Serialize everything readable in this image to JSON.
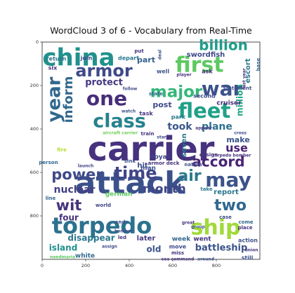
{
  "chart_data": {
    "type": "wordcloud",
    "title": "WordCloud 3 of 6 - Vocabulary from Real-Time",
    "xlabel": "",
    "ylabel": "",
    "xlim": [
      0,
      1000
    ],
    "ylim": [
      1000,
      0
    ],
    "x_ticks": [
      "0",
      "200",
      "400",
      "600",
      "800"
    ],
    "y_ticks": [
      "0",
      "200",
      "400",
      "600",
      "800"
    ],
    "words": [
      {
        "text": "carrier",
        "weight": 1.0,
        "color": "#46327e"
      },
      {
        "text": "attack",
        "weight": 0.95,
        "color": "#3b518b"
      },
      {
        "text": "ship",
        "weight": 0.6,
        "color": "#a0da39"
      },
      {
        "text": "torpedo",
        "weight": 0.55,
        "color": "#2c728e"
      },
      {
        "text": "china",
        "weight": 0.6,
        "color": "#21918c"
      },
      {
        "text": "first",
        "weight": 0.55,
        "color": "#5ec962"
      },
      {
        "text": "war",
        "weight": 0.5,
        "color": "#3b528b"
      },
      {
        "text": "fleet",
        "weight": 0.5,
        "color": "#1fa187"
      },
      {
        "text": "one",
        "weight": 0.5,
        "color": "#472d7b"
      },
      {
        "text": "armor",
        "weight": 0.45,
        "color": "#3e4a89"
      },
      {
        "text": "year",
        "weight": 0.45,
        "color": "#31688e"
      },
      {
        "text": "class",
        "weight": 0.45,
        "color": "#26828e"
      },
      {
        "text": "time",
        "weight": 0.45,
        "color": "#414487"
      },
      {
        "text": "may",
        "weight": 0.45,
        "color": "#3b528b"
      },
      {
        "text": "billion",
        "weight": 0.4,
        "color": "#1f9e89"
      },
      {
        "text": "major",
        "weight": 0.4,
        "color": "#35b779"
      },
      {
        "text": "power",
        "weight": 0.35,
        "color": "#3e4a89"
      },
      {
        "text": "air",
        "weight": 0.35,
        "color": "#2a788e"
      },
      {
        "text": "accord",
        "weight": 0.35,
        "color": "#482475"
      },
      {
        "text": "two",
        "weight": 0.35,
        "color": "#31688e"
      },
      {
        "text": "wit",
        "weight": 0.35,
        "color": "#46337e"
      },
      {
        "text": "month",
        "weight": 0.3,
        "color": "#3f4788"
      },
      {
        "text": "inform",
        "weight": 0.3,
        "color": "#31688e"
      },
      {
        "text": "use",
        "weight": 0.25,
        "color": "#482173"
      },
      {
        "text": "took",
        "weight": 0.25,
        "color": "#39568c"
      },
      {
        "text": "plane",
        "weight": 0.22,
        "color": "#2d708e"
      },
      {
        "text": "battleship",
        "weight": 0.22,
        "color": "#3b528b"
      },
      {
        "text": "nuclear",
        "weight": 0.22,
        "color": "#433e85"
      },
      {
        "text": "island",
        "weight": 0.2,
        "color": "#21908d"
      },
      {
        "text": "old",
        "weight": 0.2,
        "color": "#3b528b"
      },
      {
        "text": "protect",
        "weight": 0.2,
        "color": "#453781"
      },
      {
        "text": "disappear",
        "weight": 0.2,
        "color": "#2a788e"
      },
      {
        "text": "four",
        "weight": 0.2,
        "color": "#46327e"
      },
      {
        "text": "swordfish",
        "weight": 0.16,
        "color": "#3f4788"
      },
      {
        "text": "million",
        "weight": 0.16,
        "color": "#22a884"
      },
      {
        "text": "escort",
        "weight": 0.14,
        "color": "#2a788e"
      },
      {
        "text": "post",
        "weight": 0.16,
        "color": "#3e4a89"
      },
      {
        "text": "part",
        "weight": 0.16,
        "color": "#35608d"
      },
      {
        "text": "make",
        "weight": 0.16,
        "color": "#3b528b"
      },
      {
        "text": "seven",
        "weight": 0.14,
        "color": "#2c728e"
      },
      {
        "text": "report",
        "weight": 0.14,
        "color": "#2a788e"
      },
      {
        "text": "later",
        "weight": 0.14,
        "color": "#453781"
      },
      {
        "text": "white",
        "weight": 0.13,
        "color": "#31688e"
      },
      {
        "text": "german",
        "weight": 0.13,
        "color": "#5ec962"
      },
      {
        "text": "hit",
        "weight": 0.13,
        "color": "#3e4a89"
      },
      {
        "text": "royal",
        "weight": 0.12,
        "color": "#414487"
      },
      {
        "text": "man",
        "weight": 0.12,
        "color": "#3b528b"
      },
      {
        "text": "cruiser",
        "weight": 0.12,
        "color": "#482878"
      },
      {
        "text": "second",
        "weight": 0.11,
        "color": "#3e4989"
      },
      {
        "text": "week",
        "weight": 0.11,
        "color": "#31688e"
      },
      {
        "text": "went",
        "weight": 0.11,
        "color": "#46327e"
      },
      {
        "text": "action",
        "weight": 0.1,
        "color": "#3b528b"
      },
      {
        "text": "six",
        "weight": 0.1,
        "color": "#46327e"
      },
      {
        "text": "return",
        "weight": 0.1,
        "color": "#2c728e"
      },
      {
        "text": "join",
        "weight": 0.1,
        "color": "#3e4a89"
      },
      {
        "text": "depart",
        "weight": 0.1,
        "color": "#2a788e"
      },
      {
        "text": "well",
        "weight": 0.09,
        "color": "#3b528b"
      },
      {
        "text": "ask",
        "weight": 0.09,
        "color": "#46327e"
      },
      {
        "text": "statement",
        "weight": 0.09,
        "color": "#3e4a89"
      },
      {
        "text": "base",
        "weight": 0.09,
        "color": "#35608d"
      },
      {
        "text": "park",
        "weight": 0.09,
        "color": "#2a788e"
      },
      {
        "text": "task",
        "weight": 0.09,
        "color": "#46327e"
      },
      {
        "text": "state",
        "weight": 0.08,
        "color": "#31688e"
      },
      {
        "text": "armor deck",
        "weight": 0.09,
        "color": "#46327e"
      },
      {
        "text": "nation",
        "weight": 0.08,
        "color": "#3b528b"
      },
      {
        "text": "world",
        "weight": 0.08,
        "color": "#414487"
      },
      {
        "text": "move",
        "weight": 0.08,
        "color": "#3e4a89"
      },
      {
        "text": "miss",
        "weight": 0.08,
        "color": "#46327e"
      },
      {
        "text": "still",
        "weight": 0.08,
        "color": "#3b528b"
      },
      {
        "text": "come",
        "weight": 0.08,
        "color": "#31688e"
      },
      {
        "text": "place",
        "weight": 0.07,
        "color": "#46327e"
      },
      {
        "text": "case",
        "weight": 0.07,
        "color": "#3e4a89"
      },
      {
        "text": "take",
        "weight": 0.07,
        "color": "#2a788e"
      },
      {
        "text": "design",
        "weight": 0.07,
        "color": "#46327e"
      },
      {
        "text": "sink",
        "weight": 0.07,
        "color": "#3b528b"
      },
      {
        "text": "launch",
        "weight": 0.06,
        "color": "#414487"
      },
      {
        "text": "person",
        "weight": 0.06,
        "color": "#31688e"
      },
      {
        "text": "aircraft carrier",
        "weight": 0.06,
        "color": "#6ece58"
      },
      {
        "text": "torpedo bomber",
        "weight": 0.06,
        "color": "#46327e"
      },
      {
        "text": "end",
        "weight": 0.06,
        "color": "#3e4a89"
      },
      {
        "text": "led",
        "weight": 0.06,
        "color": "#46327e"
      },
      {
        "text": "sea command",
        "weight": 0.05,
        "color": "#46327e"
      },
      {
        "text": "around",
        "weight": 0.05,
        "color": "#3b528b"
      },
      {
        "text": "assign",
        "weight": 0.05,
        "color": "#3e4a89"
      },
      {
        "text": "needmaria",
        "weight": 0.05,
        "color": "#5ec962"
      },
      {
        "text": "union",
        "weight": 0.05,
        "color": "#46327e"
      },
      {
        "text": "line",
        "weight": 0.06,
        "color": "#31688e"
      },
      {
        "text": "last year",
        "weight": 0.06,
        "color": "#46327e"
      },
      {
        "text": "follow",
        "weight": 0.05,
        "color": "#3e4a89"
      },
      {
        "text": "watch",
        "weight": 0.05,
        "color": "#3b528b"
      },
      {
        "text": "train",
        "weight": 0.05,
        "color": "#46327e"
      },
      {
        "text": "cross",
        "weight": 0.05,
        "color": "#3e4a89"
      },
      {
        "text": "fire",
        "weight": 0.05,
        "color": "#b5de2b"
      },
      {
        "text": "put",
        "weight": 0.05,
        "color": "#46327e"
      },
      {
        "text": "deal",
        "weight": 0.05,
        "color": "#3b528b"
      },
      {
        "text": "player",
        "weight": 0.05,
        "color": "#46327e"
      },
      {
        "text": "bomber",
        "weight": 0.05,
        "color": "#3e4a89"
      },
      {
        "text": "appear",
        "weight": 0.05,
        "color": "#46327e"
      },
      {
        "text": "group",
        "weight": 0.05,
        "color": "#3b528b"
      },
      {
        "text": "great",
        "weight": 0.05,
        "color": "#46327e"
      },
      {
        "text": "star",
        "weight": 0.05,
        "color": "#3e4a89"
      }
    ]
  }
}
